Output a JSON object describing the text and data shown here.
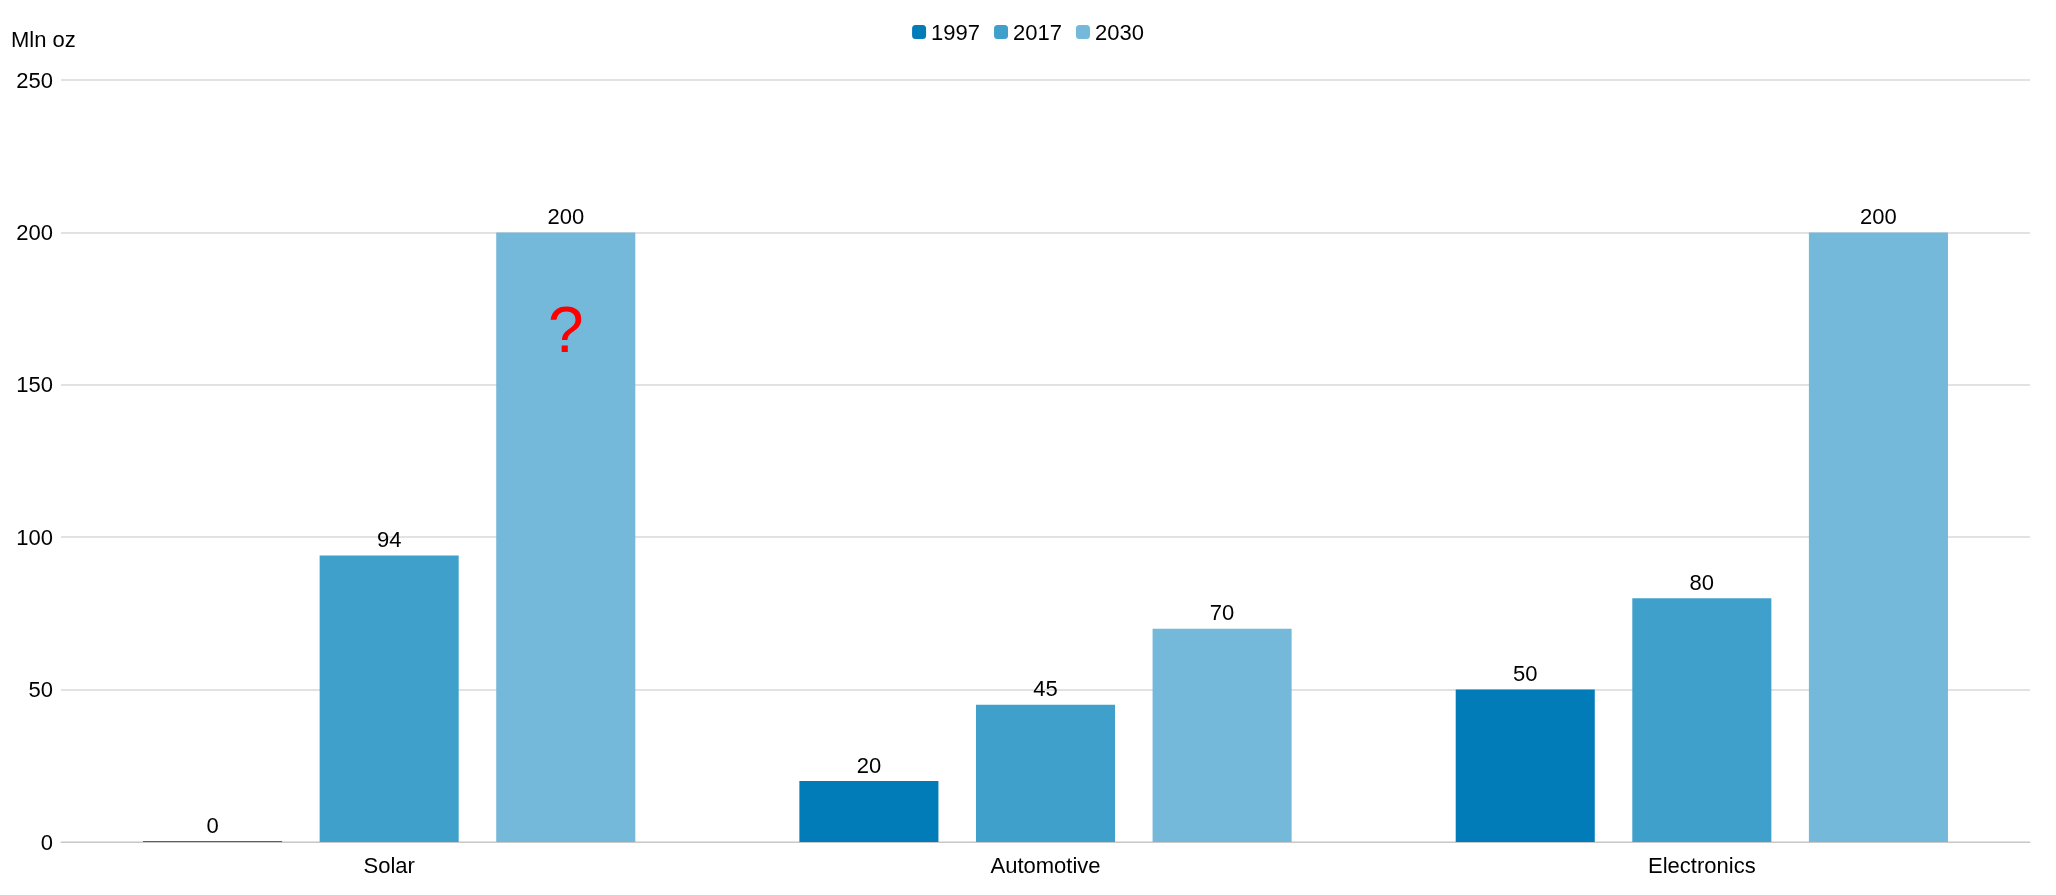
{
  "chart_data": {
    "type": "bar",
    "ylabel": "Mln oz",
    "categories": [
      "Solar",
      "Automotive",
      "Electronics"
    ],
    "series": [
      {
        "name": "1997",
        "color": "#017cb8",
        "values": [
          0,
          20,
          50
        ]
      },
      {
        "name": "2017",
        "color": "#40a0cc",
        "values": [
          94,
          45,
          80
        ]
      },
      {
        "name": "2030",
        "color": "#74b8da",
        "values": [
          200,
          70,
          200
        ]
      }
    ],
    "ylim": [
      0,
      250
    ],
    "yticks": [
      0,
      50,
      100,
      150,
      200,
      250
    ],
    "grid": "y",
    "legend": "top",
    "data_labels": true,
    "annotations": [
      "?"
    ]
  }
}
